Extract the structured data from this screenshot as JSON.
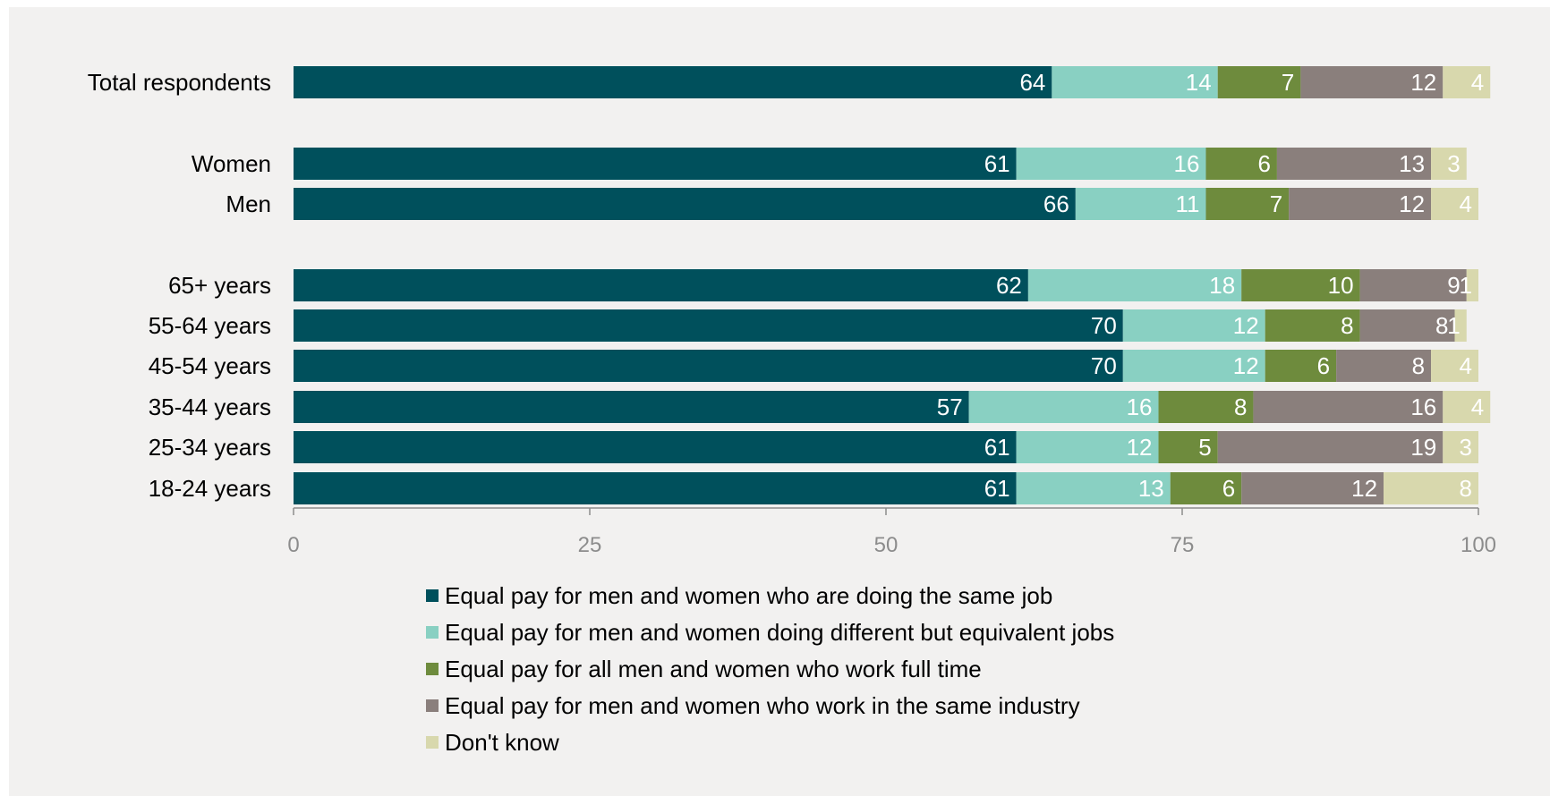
{
  "chart_data": {
    "type": "bar",
    "orientation": "horizontal",
    "stacked": true,
    "xlim": [
      0,
      100
    ],
    "xticks": [
      0,
      25,
      50,
      75,
      100
    ],
    "legend_position": "bottom",
    "grid": false,
    "categories": [
      "Total respondents",
      "Women",
      "Men",
      "65+ years",
      "55-64 years",
      "45-54 years",
      "35-44 years",
      "25-34 years",
      "18-24 years"
    ],
    "series": [
      {
        "name": "Equal pay for men and women who are doing the same job",
        "color": "#00505c",
        "label_color": "#ffffff",
        "values": [
          64,
          61,
          66,
          62,
          70,
          70,
          57,
          61,
          61
        ]
      },
      {
        "name": "Equal pay for men and women doing different but equivalent jobs",
        "color": "#89d0c2",
        "label_color": "#ffffff",
        "values": [
          14,
          16,
          11,
          18,
          12,
          12,
          16,
          12,
          13
        ]
      },
      {
        "name": "Equal pay for all men and women who work full time",
        "color": "#6e8b3d",
        "label_color": "#ffffff",
        "values": [
          7,
          6,
          7,
          10,
          8,
          6,
          8,
          5,
          6
        ]
      },
      {
        "name": "Equal pay for men and women who work in the same industry",
        "color": "#8a7f7c",
        "label_color": "#ffffff",
        "values": [
          12,
          13,
          12,
          9,
          8,
          8,
          16,
          19,
          12
        ]
      },
      {
        "name": "Don't know",
        "color": "#d8d8ad",
        "label_color": "#ffffff",
        "values": [
          4,
          3,
          4,
          1,
          1,
          4,
          4,
          3,
          8
        ]
      }
    ]
  }
}
